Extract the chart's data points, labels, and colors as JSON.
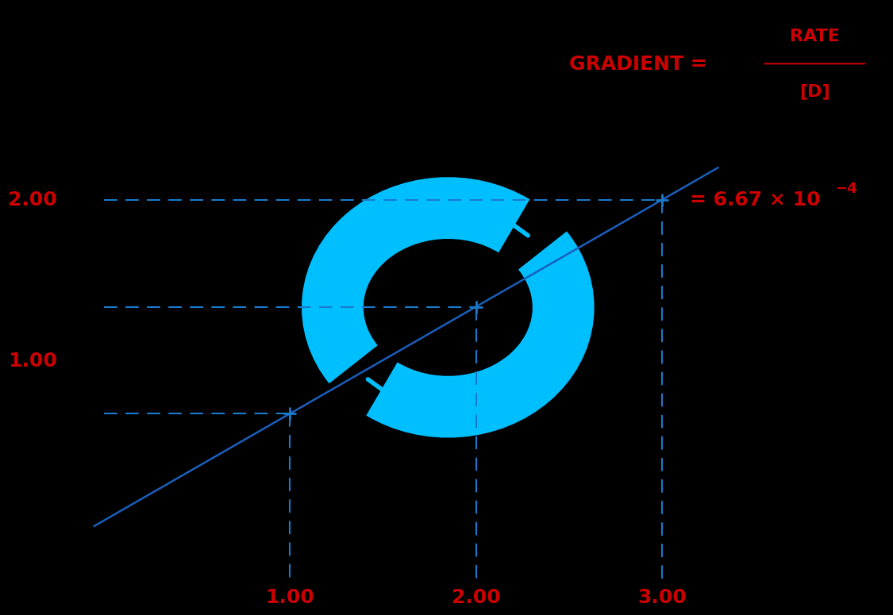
{
  "bg_color": "#000000",
  "line_color": "#1a5fbd",
  "dashed_color": "#1a7acc",
  "marker_color": "#1a7acc",
  "red_color": "#cc0000",
  "label_color": "#cc0000",
  "title_color": "#cc0000",
  "gradient_text": "GRADIENT = ",
  "rate_text": "RATE",
  "D_text": "[D]",
  "value_text": "= 6.67 × 10",
  "exponent_text": "-4",
  "y_label_1": "1.00",
  "y_label_2": "2.00",
  "x_label_1": "1.00",
  "x_label_2": "2.00",
  "x_label_3": "3.00",
  "point1_x": 1.0,
  "point1_y": 0.667,
  "point2_x": 2.0,
  "point2_y": 1.333,
  "point3_x": 3.0,
  "point3_y": 2.0,
  "line_x_start": 0.0,
  "line_x_end": 3.3,
  "line_slope": 0.667,
  "line_intercept": 0.0,
  "xlim": [
    -0.1,
    4.2
  ],
  "ylim": [
    -0.5,
    3.2
  ],
  "figsize": [
    11.0,
    7.59
  ],
  "dpi": 100
}
